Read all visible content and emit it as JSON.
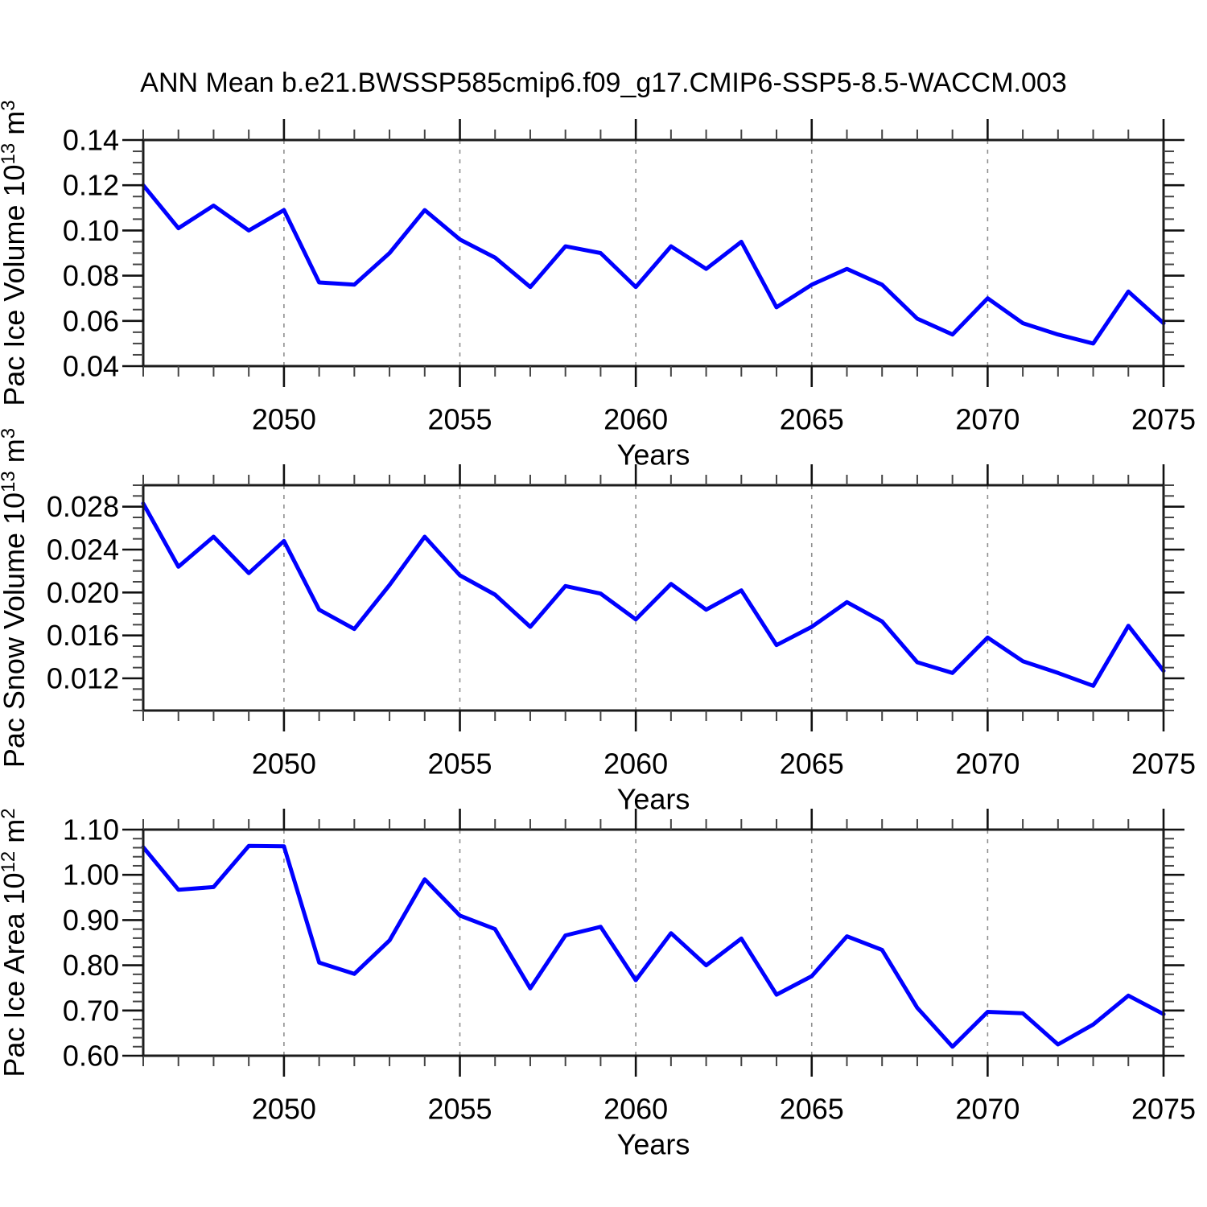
{
  "title": "ANN Mean b.e21.BWSSP585cmip6.f09_g17.CMIP6-SSP5-8.5-WACCM.003",
  "colors": {
    "line": "#0000ff",
    "axis": "#1c1c1c",
    "major_tick": "#111111",
    "minor_tick": "#444444",
    "grid": "#8f8f8f",
    "text": "#000000"
  },
  "x_axis": {
    "label": "Years",
    "start": 2046,
    "end": 2075,
    "major_ticks": [
      2050,
      2055,
      2060,
      2065,
      2070,
      2075
    ],
    "major_tick_labels": [
      "2050",
      "2055",
      "2060",
      "2065",
      "2070",
      "2075"
    ],
    "minor_step": 1,
    "grid_years": [
      2050,
      2055,
      2060,
      2065,
      2070
    ]
  },
  "chart_data": [
    {
      "type": "line",
      "name": "pac-ice-volume",
      "ylabel_text": "Pac Ice Volume 10^13 m^3",
      "ylabel_segments": [
        {
          "t": "Pac Ice Volume 10"
        },
        {
          "t": "13",
          "sup": true
        },
        {
          "t": " m"
        },
        {
          "t": "3",
          "sup": true
        }
      ],
      "xlabel": "Years",
      "ylim": [
        0.04,
        0.14
      ],
      "y_minor_step": 0.005,
      "y_ticks": [
        {
          "v": 0.04,
          "label": "0.04"
        },
        {
          "v": 0.06,
          "label": "0.06"
        },
        {
          "v": 0.08,
          "label": "0.08"
        },
        {
          "v": 0.1,
          "label": "0.10"
        },
        {
          "v": 0.12,
          "label": "0.12"
        },
        {
          "v": 0.14,
          "label": "0.14"
        }
      ],
      "years": [
        2046,
        2047,
        2048,
        2049,
        2050,
        2051,
        2052,
        2053,
        2054,
        2055,
        2056,
        2057,
        2058,
        2059,
        2060,
        2061,
        2062,
        2063,
        2064,
        2065,
        2066,
        2067,
        2068,
        2069,
        2070,
        2071,
        2072,
        2073,
        2074,
        2075
      ],
      "values": [
        0.12,
        0.101,
        0.111,
        0.1,
        0.109,
        0.077,
        0.076,
        0.09,
        0.109,
        0.096,
        0.088,
        0.075,
        0.093,
        0.09,
        0.075,
        0.093,
        0.083,
        0.095,
        0.066,
        0.076,
        0.083,
        0.076,
        0.061,
        0.054,
        0.07,
        0.059,
        0.054,
        0.05,
        0.073,
        0.059
      ]
    },
    {
      "type": "line",
      "name": "pac-snow-volume",
      "ylabel_text": "Pac Snow Volume 10^13 m^3",
      "ylabel_segments": [
        {
          "t": "Pac Snow Volume 10"
        },
        {
          "t": "13",
          "sup": true
        },
        {
          "t": " m"
        },
        {
          "t": "3",
          "sup": true
        }
      ],
      "xlabel": "Years",
      "ylim": [
        0.009,
        0.03
      ],
      "y_minor_step": 0.001,
      "y_ticks": [
        {
          "v": 0.012,
          "label": "0.012"
        },
        {
          "v": 0.016,
          "label": "0.016"
        },
        {
          "v": 0.02,
          "label": "0.020"
        },
        {
          "v": 0.024,
          "label": "0.024"
        },
        {
          "v": 0.028,
          "label": "0.028"
        }
      ],
      "years": [
        2046,
        2047,
        2048,
        2049,
        2050,
        2051,
        2052,
        2053,
        2054,
        2055,
        2056,
        2057,
        2058,
        2059,
        2060,
        2061,
        2062,
        2063,
        2064,
        2065,
        2066,
        2067,
        2068,
        2069,
        2070,
        2071,
        2072,
        2073,
        2074,
        2075
      ],
      "values": [
        0.0283,
        0.0224,
        0.0252,
        0.0218,
        0.0248,
        0.0184,
        0.0166,
        0.0207,
        0.0252,
        0.0216,
        0.0198,
        0.0168,
        0.0206,
        0.0199,
        0.0175,
        0.0208,
        0.0184,
        0.0202,
        0.0151,
        0.0168,
        0.0191,
        0.0173,
        0.0135,
        0.0125,
        0.0158,
        0.0136,
        0.0125,
        0.0113,
        0.0169,
        0.0127
      ]
    },
    {
      "type": "line",
      "name": "pac-ice-area",
      "ylabel_text": "Pac Ice Area 10^12 m^2",
      "ylabel_segments": [
        {
          "t": "Pac Ice Area 10"
        },
        {
          "t": "12",
          "sup": true
        },
        {
          "t": " m"
        },
        {
          "t": "2",
          "sup": true
        }
      ],
      "xlabel": "Years",
      "ylim": [
        0.6,
        1.1
      ],
      "y_minor_step": 0.02,
      "y_ticks": [
        {
          "v": 0.6,
          "label": "0.60"
        },
        {
          "v": 0.7,
          "label": "0.70"
        },
        {
          "v": 0.8,
          "label": "0.80"
        },
        {
          "v": 0.9,
          "label": "0.90"
        },
        {
          "v": 1.0,
          "label": "1.00"
        },
        {
          "v": 1.1,
          "label": "1.10"
        }
      ],
      "years": [
        2046,
        2047,
        2048,
        2049,
        2050,
        2051,
        2052,
        2053,
        2054,
        2055,
        2056,
        2057,
        2058,
        2059,
        2060,
        2061,
        2062,
        2063,
        2064,
        2065,
        2066,
        2067,
        2068,
        2069,
        2070,
        2071,
        2072,
        2073,
        2074,
        2075
      ],
      "values": [
        1.061,
        0.967,
        0.973,
        1.064,
        1.063,
        0.806,
        0.781,
        0.855,
        0.99,
        0.91,
        0.88,
        0.749,
        0.866,
        0.885,
        0.767,
        0.871,
        0.8,
        0.859,
        0.735,
        0.776,
        0.864,
        0.834,
        0.706,
        0.62,
        0.697,
        0.694,
        0.625,
        0.669,
        0.733,
        0.692
      ]
    }
  ]
}
